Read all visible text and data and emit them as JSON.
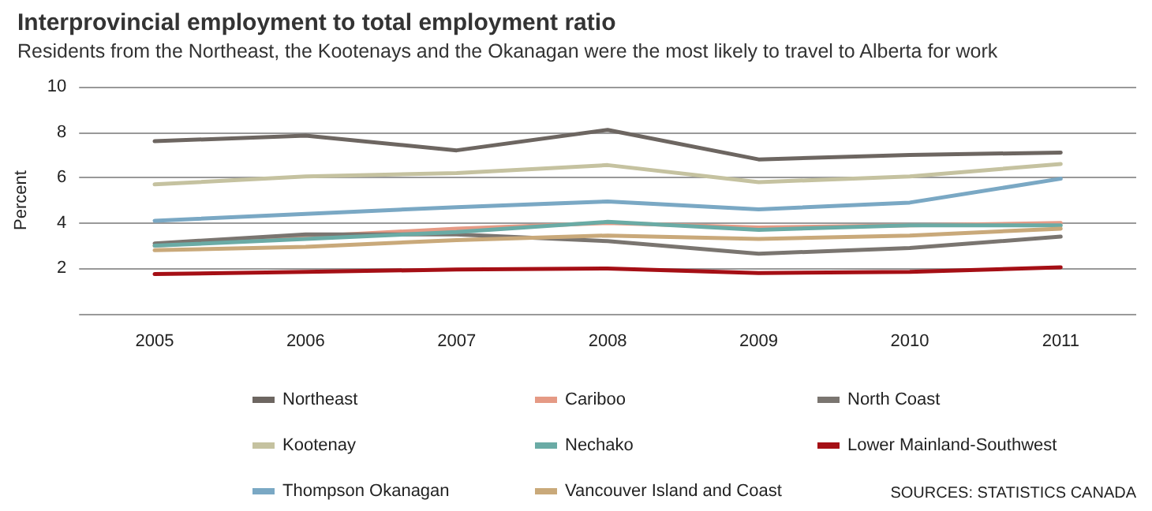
{
  "chart_data": {
    "type": "line",
    "title": "Interprovincial employment to total employment ratio",
    "subtitle": "Residents from the Northeast, the Kootenays and the Okanagan were the most likely to travel to Alberta for work",
    "ylabel": "Percent",
    "categories": [
      "2005",
      "2006",
      "2007",
      "2008",
      "2009",
      "2010",
      "2011"
    ],
    "series": [
      {
        "name": "Northeast",
        "color": "#6d6661",
        "values": [
          7.6,
          7.85,
          7.2,
          8.1,
          6.8,
          7.0,
          7.1
        ]
      },
      {
        "name": "Cariboo",
        "color": "#e59a85",
        "values": [
          3.0,
          3.4,
          3.75,
          4.0,
          3.8,
          3.9,
          4.0
        ]
      },
      {
        "name": "North Coast",
        "color": "#7a7570",
        "values": [
          3.1,
          3.5,
          3.5,
          3.2,
          2.65,
          2.9,
          3.4
        ]
      },
      {
        "name": "Kootenay",
        "color": "#c5c2a0",
        "values": [
          5.7,
          6.05,
          6.2,
          6.55,
          5.8,
          6.05,
          6.6
        ]
      },
      {
        "name": "Nechako",
        "color": "#6aaba5",
        "values": [
          3.0,
          3.3,
          3.6,
          4.05,
          3.7,
          3.9,
          3.9
        ]
      },
      {
        "name": "Lower Mainland-Southwest",
        "color": "#a50f15",
        "values": [
          1.75,
          1.85,
          1.95,
          2.0,
          1.8,
          1.85,
          2.05
        ]
      },
      {
        "name": "Thompson Okanagan",
        "color": "#7aa8c4",
        "values": [
          4.1,
          4.4,
          4.7,
          4.95,
          4.6,
          4.9,
          5.95
        ]
      },
      {
        "name": "Vancouver Island and Coast",
        "color": "#c9a97a",
        "values": [
          2.8,
          2.95,
          3.25,
          3.45,
          3.3,
          3.45,
          3.75
        ]
      }
    ],
    "ylim": [
      0,
      10
    ],
    "yticks": [
      {
        "value": 0,
        "label": null
      },
      2,
      4,
      6,
      8,
      10
    ],
    "grid": "y",
    "legend": "bottom",
    "marker": "none",
    "line_style": "solid",
    "annotations": [
      "SOURCES: STATISTICS CANADA"
    ]
  }
}
